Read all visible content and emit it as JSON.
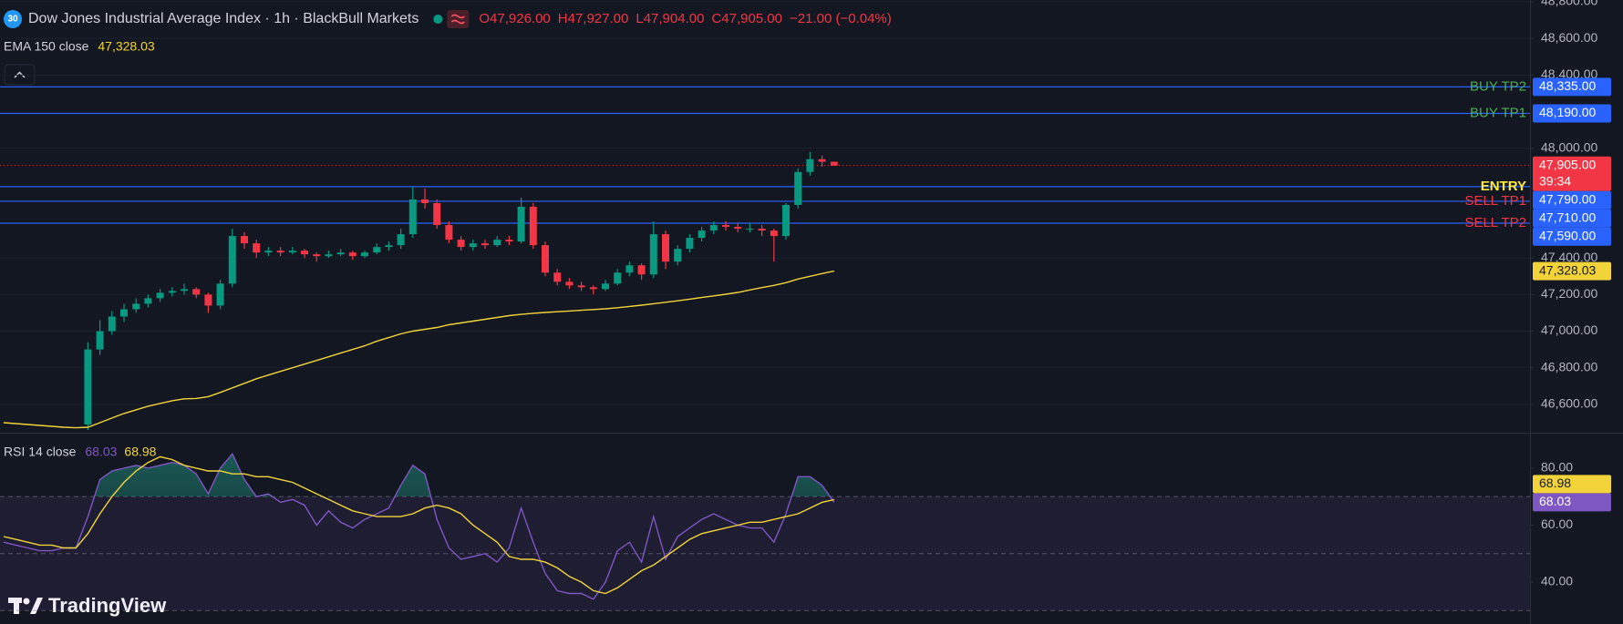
{
  "header": {
    "badge": "30",
    "symbol": "Dow Jones Industrial Average Index · 1h · BlackBull Markets",
    "ohlc": [
      {
        "label": "O",
        "value": "47,926.00"
      },
      {
        "label": "H",
        "value": "47,927.00"
      },
      {
        "label": "L",
        "value": "47,904.00"
      },
      {
        "label": "C",
        "value": "47,905.00"
      }
    ],
    "change": "−21.00 (−0.04%)"
  },
  "brand": "TradingView",
  "chart_data": [
    {
      "type": "candlestick",
      "up_color": "#089981",
      "down_color": "#f23645",
      "candles": [
        null,
        null,
        null,
        null,
        null,
        null,
        null,
        [
          46490,
          46940,
          46460,
          46900
        ],
        [
          46900,
          47060,
          46870,
          47000
        ],
        [
          47000,
          47110,
          46980,
          47080
        ],
        [
          47080,
          47150,
          47050,
          47120
        ],
        [
          47120,
          47180,
          47100,
          47150
        ],
        [
          47150,
          47200,
          47130,
          47180
        ],
        [
          47180,
          47230,
          47160,
          47210
        ],
        [
          47210,
          47240,
          47190,
          47220
        ],
        [
          47220,
          47260,
          47200,
          47230
        ],
        [
          47230,
          47240,
          47180,
          47200
        ],
        [
          47200,
          47210,
          47100,
          47140
        ],
        [
          47140,
          47280,
          47120,
          47260
        ],
        [
          47260,
          47560,
          47240,
          47520
        ],
        [
          47520,
          47540,
          47450,
          47480
        ],
        [
          47480,
          47500,
          47400,
          47430
        ],
        [
          47430,
          47460,
          47410,
          47440
        ],
        [
          47440,
          47460,
          47410,
          47430
        ],
        [
          47430,
          47460,
          47420,
          47440
        ],
        [
          47440,
          47450,
          47400,
          47420
        ],
        [
          47420,
          47430,
          47380,
          47410
        ],
        [
          47410,
          47440,
          47400,
          47420
        ],
        [
          47420,
          47450,
          47410,
          47430
        ],
        [
          47430,
          47440,
          47390,
          47410
        ],
        [
          47410,
          47440,
          47400,
          47430
        ],
        [
          47430,
          47480,
          47420,
          47460
        ],
        [
          47460,
          47490,
          47440,
          47470
        ],
        [
          47470,
          47560,
          47450,
          47530
        ],
        [
          47530,
          47790,
          47510,
          47720
        ],
        [
          47720,
          47780,
          47670,
          47700
        ],
        [
          47700,
          47720,
          47560,
          47580
        ],
        [
          47580,
          47600,
          47480,
          47500
        ],
        [
          47500,
          47520,
          47440,
          47460
        ],
        [
          47460,
          47500,
          47440,
          47480
        ],
        [
          47480,
          47500,
          47450,
          47470
        ],
        [
          47470,
          47520,
          47460,
          47500
        ],
        [
          47500,
          47520,
          47470,
          47490
        ],
        [
          47490,
          47730,
          47480,
          47680
        ],
        [
          47680,
          47700,
          47450,
          47470
        ],
        [
          47470,
          47490,
          47300,
          47320
        ],
        [
          47320,
          47340,
          47250,
          47270
        ],
        [
          47270,
          47290,
          47230,
          47250
        ],
        [
          47250,
          47270,
          47220,
          47240
        ],
        [
          47240,
          47250,
          47200,
          47230
        ],
        [
          47230,
          47280,
          47220,
          47260
        ],
        [
          47260,
          47340,
          47250,
          47320
        ],
        [
          47320,
          47380,
          47300,
          47360
        ],
        [
          47360,
          47370,
          47280,
          47310
        ],
        [
          47310,
          47600,
          47290,
          47530
        ],
        [
          47530,
          47550,
          47340,
          47380
        ],
        [
          47380,
          47470,
          47360,
          47450
        ],
        [
          47450,
          47530,
          47430,
          47510
        ],
        [
          47510,
          47570,
          47490,
          47550
        ],
        [
          47550,
          47600,
          47530,
          47580
        ],
        [
          47580,
          47600,
          47550,
          47570
        ],
        [
          47570,
          47590,
          47540,
          47560
        ],
        [
          47560,
          47590,
          47540,
          47560
        ],
        [
          47560,
          47580,
          47520,
          47550
        ],
        [
          47550,
          47560,
          47380,
          47520
        ],
        [
          47520,
          47700,
          47500,
          47690
        ],
        [
          47690,
          47890,
          47670,
          47870
        ],
        [
          47870,
          47980,
          47850,
          47940
        ],
        [
          47940,
          47960,
          47900,
          47926
        ],
        [
          47926,
          47927,
          47904,
          47905
        ]
      ],
      "series": [
        {
          "name": "EMA 150 close",
          "color": "#f2d43a",
          "last_value_label": "47,328.03",
          "values": [
            46500,
            46495,
            46490,
            46485,
            46480,
            46475,
            46472,
            46475,
            46500,
            46525,
            46550,
            46570,
            46590,
            46605,
            46620,
            46630,
            46632,
            46642,
            46665,
            46690,
            46715,
            46740,
            46760,
            46780,
            46800,
            46820,
            46840,
            46860,
            46880,
            46900,
            46920,
            46945,
            46965,
            46985,
            47000,
            47010,
            47020,
            47035,
            47045,
            47055,
            47065,
            47075,
            47085,
            47092,
            47098,
            47102,
            47106,
            47110,
            47114,
            47118,
            47122,
            47128,
            47135,
            47142,
            47150,
            47158,
            47166,
            47175,
            47184,
            47193,
            47202,
            47212,
            47225,
            47238,
            47250,
            47265,
            47285,
            47300,
            47315,
            47328.03
          ]
        }
      ],
      "levels": [
        {
          "name": "BUY TP2",
          "value": 48335,
          "value_label": "48,335.00",
          "color": "#4caf50"
        },
        {
          "name": "BUY TP1",
          "value": 48190,
          "value_label": "48,190.00",
          "color": "#4caf50"
        },
        {
          "name": "ENTRY",
          "value": 47790,
          "value_label": "47,790.00",
          "color": "#ffeb3b"
        },
        {
          "name": "SELL TP1",
          "value": 47710,
          "value_label": "47,710.00",
          "color": "#f23645"
        },
        {
          "name": "SELL TP2",
          "value": 47590,
          "value_label": "47,590.00",
          "color": "#f23645"
        }
      ],
      "level_color": "#2962ff",
      "last_price": 47905,
      "last_price_label": "47,905.00",
      "countdown": "39:34",
      "last_price_color": "#f23645",
      "ylim": [
        46450,
        48810
      ],
      "grid": true,
      "yticks": [
        {
          "value": 48800,
          "label": "48,800.00"
        },
        {
          "value": 48600,
          "label": "48,600.00"
        },
        {
          "value": 48400,
          "label": "48,400.00"
        },
        {
          "value": 48000,
          "label": "48,000.00"
        },
        {
          "value": 47400,
          "label": "47,400.00"
        },
        {
          "value": 47200,
          "label": "47,200.00"
        },
        {
          "value": 47000,
          "label": "47,000.00"
        },
        {
          "value": 46800,
          "label": "46,800.00"
        },
        {
          "value": 46600,
          "label": "46,600.00"
        }
      ]
    },
    {
      "type": "line",
      "title": "RSI 14 close",
      "series": [
        {
          "color": "#7e57c2",
          "last_value_label": "68.03",
          "values": [
            54,
            53,
            52,
            51,
            51,
            52,
            52,
            63,
            76,
            79,
            80,
            81,
            80,
            81,
            82,
            81,
            78,
            71,
            80,
            85,
            76,
            70,
            71,
            68,
            69,
            67,
            60,
            65,
            61,
            59,
            62,
            64,
            66,
            74,
            81,
            78,
            62,
            52,
            48,
            49,
            50,
            47,
            52,
            66,
            54,
            43,
            37,
            36,
            36,
            34,
            40,
            51,
            54,
            47,
            63,
            48,
            56,
            59,
            62,
            64,
            62,
            60,
            59,
            59,
            54,
            64,
            77,
            77,
            74,
            68.03
          ]
        },
        {
          "color": "#f2d43a",
          "last_value_label": "68.98",
          "values": [
            56,
            55,
            54,
            53,
            53,
            52,
            52,
            57,
            64,
            70,
            75,
            79,
            82,
            84,
            83,
            81,
            80,
            79,
            79,
            78,
            78,
            77,
            77,
            76,
            75,
            73,
            71,
            69,
            67,
            65,
            64,
            63,
            63,
            63,
            64,
            66,
            67,
            66,
            64,
            60,
            57,
            54,
            49,
            48,
            48,
            47,
            45,
            42,
            40,
            37,
            36,
            38,
            41,
            44,
            46,
            49,
            52,
            55,
            57,
            58,
            59,
            60,
            61,
            61,
            62,
            63,
            64,
            66,
            68,
            68.98
          ]
        }
      ],
      "band": [
        30,
        70
      ],
      "midline": 50,
      "band_color": "#7e57c2",
      "overbought_color": "#22ab94",
      "ylim": [
        25.3,
        91.8
      ],
      "yticks": [
        {
          "value": 80,
          "label": "80.00"
        },
        {
          "value": 60,
          "label": "60.00"
        },
        {
          "value": 40,
          "label": "40.00"
        }
      ]
    }
  ]
}
